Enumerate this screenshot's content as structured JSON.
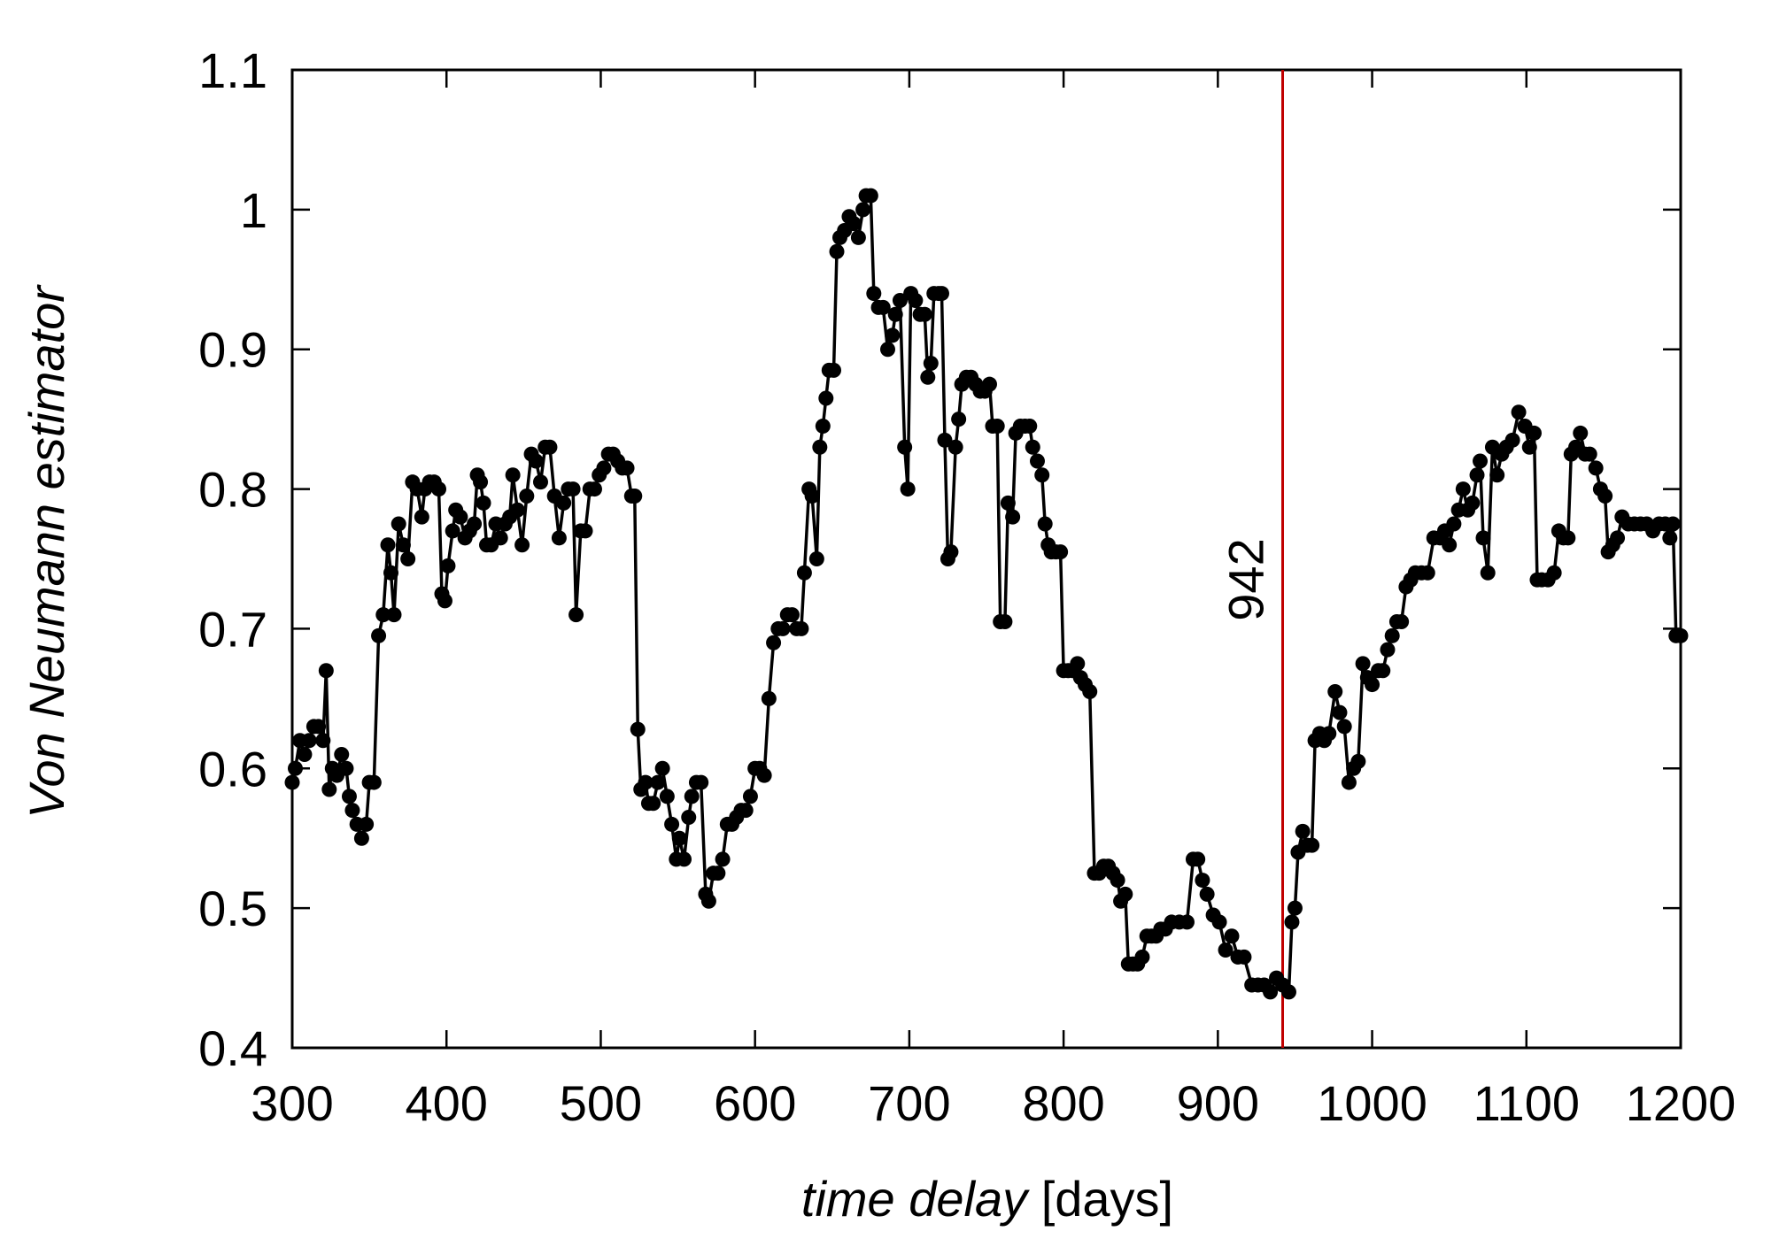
{
  "chart_data": {
    "type": "line",
    "ylabel": "Von Neumann estimator",
    "xlabel": [
      {
        "text": "time delay",
        "italic": true
      },
      {
        "text": "[days]",
        "italic": false
      }
    ],
    "xlim": [
      300,
      1200
    ],
    "xticks": [
      300,
      400,
      500,
      600,
      700,
      800,
      900,
      1000,
      1100,
      1200
    ],
    "ylim": [
      0.4,
      1.1
    ],
    "yticks": [
      0.4,
      0.5,
      0.6,
      0.7,
      0.8,
      0.9,
      1,
      1.1
    ],
    "vline": {
      "x": 942,
      "color": "#c00000"
    },
    "series": [
      {
        "color": "#000000",
        "x": [
          300,
          302,
          305,
          308,
          311,
          314,
          317,
          320,
          322,
          324,
          326,
          329,
          332,
          335,
          337,
          339,
          342,
          345,
          348,
          350,
          353,
          356,
          359,
          362,
          364,
          366,
          369,
          372,
          375,
          378,
          381,
          384,
          386,
          389,
          392,
          395,
          397,
          399,
          401,
          404,
          406,
          409,
          412,
          415,
          418,
          420,
          422,
          424,
          426,
          429,
          432,
          435,
          438,
          441,
          443,
          446,
          449,
          452,
          455,
          458,
          461,
          464,
          467,
          470,
          473,
          476,
          479,
          482,
          484,
          487,
          490,
          493,
          496,
          499,
          502,
          505,
          508,
          511,
          514,
          517,
          520,
          522,
          524,
          526,
          529,
          531,
          534,
          537,
          540,
          543,
          546,
          549,
          551,
          554,
          557,
          559,
          562,
          565,
          568,
          570,
          573,
          576,
          579,
          582,
          585,
          588,
          591,
          594,
          597,
          600,
          603,
          606,
          609,
          612,
          615,
          618,
          621,
          624,
          627,
          630,
          632,
          635,
          637,
          640,
          642,
          644,
          646,
          648,
          651,
          653,
          655,
          658,
          661,
          664,
          667,
          670,
          672,
          675,
          677,
          680,
          683,
          686,
          689,
          691,
          694,
          697,
          699,
          701,
          704,
          707,
          710,
          712,
          714,
          716,
          719,
          721,
          723,
          725,
          727,
          730,
          732,
          734,
          737,
          740,
          743,
          746,
          749,
          752,
          754,
          757,
          759,
          762,
          764,
          767,
          769,
          772,
          775,
          778,
          780,
          783,
          786,
          788,
          790,
          792,
          795,
          798,
          800,
          803,
          806,
          809,
          811,
          814,
          817,
          820,
          823,
          826,
          829,
          832,
          835,
          837,
          840,
          842,
          845,
          848,
          851,
          854,
          857,
          860,
          863,
          866,
          870,
          875,
          880,
          884,
          887,
          890,
          893,
          897,
          901,
          905,
          909,
          913,
          917,
          922,
          926,
          930,
          934,
          938,
          942,
          946,
          948,
          950,
          952,
          955,
          958,
          961,
          963,
          966,
          969,
          972,
          976,
          979,
          982,
          985,
          988,
          991,
          994,
          997,
          1000,
          1004,
          1007,
          1010,
          1013,
          1016,
          1019,
          1022,
          1025,
          1028,
          1032,
          1036,
          1040,
          1044,
          1047,
          1050,
          1053,
          1056,
          1059,
          1062,
          1065,
          1068,
          1070,
          1072,
          1075,
          1078,
          1081,
          1084,
          1087,
          1091,
          1095,
          1099,
          1102,
          1105,
          1107,
          1110,
          1114,
          1118,
          1121,
          1124,
          1127,
          1129,
          1132,
          1135,
          1138,
          1141,
          1145,
          1148,
          1151,
          1153,
          1156,
          1159,
          1162,
          1166,
          1170,
          1174,
          1178,
          1182,
          1186,
          1190,
          1193,
          1195,
          1197,
          1200
        ],
        "values": [
          0.59,
          0.6,
          0.62,
          0.61,
          0.62,
          0.63,
          0.63,
          0.62,
          0.67,
          0.585,
          0.6,
          0.595,
          0.61,
          0.6,
          0.58,
          0.57,
          0.56,
          0.55,
          0.56,
          0.59,
          0.59,
          0.695,
          0.71,
          0.76,
          0.74,
          0.71,
          0.775,
          0.76,
          0.75,
          0.805,
          0.8,
          0.78,
          0.8,
          0.805,
          0.805,
          0.8,
          0.725,
          0.72,
          0.745,
          0.77,
          0.785,
          0.78,
          0.765,
          0.77,
          0.775,
          0.81,
          0.805,
          0.79,
          0.76,
          0.76,
          0.775,
          0.765,
          0.775,
          0.78,
          0.81,
          0.785,
          0.76,
          0.795,
          0.825,
          0.82,
          0.805,
          0.83,
          0.83,
          0.795,
          0.765,
          0.79,
          0.8,
          0.8,
          0.71,
          0.77,
          0.77,
          0.8,
          0.8,
          0.81,
          0.815,
          0.825,
          0.825,
          0.82,
          0.815,
          0.815,
          0.795,
          0.795,
          0.628,
          0.585,
          0.59,
          0.575,
          0.575,
          0.59,
          0.6,
          0.58,
          0.56,
          0.535,
          0.55,
          0.535,
          0.565,
          0.58,
          0.59,
          0.59,
          0.51,
          0.505,
          0.525,
          0.525,
          0.535,
          0.56,
          0.56,
          0.565,
          0.57,
          0.57,
          0.58,
          0.6,
          0.6,
          0.595,
          0.65,
          0.69,
          0.7,
          0.7,
          0.71,
          0.71,
          0.7,
          0.7,
          0.74,
          0.8,
          0.795,
          0.75,
          0.83,
          0.845,
          0.865,
          0.885,
          0.885,
          0.97,
          0.98,
          0.985,
          0.995,
          0.99,
          0.98,
          1.0,
          1.01,
          1.01,
          0.94,
          0.93,
          0.93,
          0.9,
          0.91,
          0.925,
          0.935,
          0.83,
          0.8,
          0.94,
          0.935,
          0.925,
          0.925,
          0.88,
          0.89,
          0.94,
          0.94,
          0.94,
          0.835,
          0.75,
          0.755,
          0.83,
          0.85,
          0.875,
          0.88,
          0.88,
          0.875,
          0.87,
          0.87,
          0.875,
          0.845,
          0.845,
          0.705,
          0.705,
          0.79,
          0.78,
          0.84,
          0.845,
          0.845,
          0.845,
          0.83,
          0.82,
          0.81,
          0.775,
          0.76,
          0.755,
          0.755,
          0.755,
          0.67,
          0.67,
          0.67,
          0.675,
          0.665,
          0.66,
          0.655,
          0.525,
          0.525,
          0.53,
          0.53,
          0.525,
          0.52,
          0.505,
          0.51,
          0.46,
          0.46,
          0.46,
          0.465,
          0.48,
          0.48,
          0.48,
          0.485,
          0.485,
          0.49,
          0.49,
          0.49,
          0.535,
          0.535,
          0.52,
          0.51,
          0.495,
          0.49,
          0.47,
          0.48,
          0.465,
          0.465,
          0.445,
          0.445,
          0.445,
          0.44,
          0.45,
          0.445,
          0.44,
          0.49,
          0.5,
          0.54,
          0.555,
          0.545,
          0.545,
          0.62,
          0.625,
          0.62,
          0.625,
          0.655,
          0.64,
          0.63,
          0.59,
          0.6,
          0.605,
          0.675,
          0.665,
          0.66,
          0.67,
          0.67,
          0.685,
          0.695,
          0.705,
          0.705,
          0.73,
          0.735,
          0.74,
          0.74,
          0.74,
          0.765,
          0.765,
          0.77,
          0.76,
          0.775,
          0.785,
          0.8,
          0.785,
          0.79,
          0.81,
          0.82,
          0.765,
          0.74,
          0.83,
          0.81,
          0.825,
          0.83,
          0.835,
          0.855,
          0.845,
          0.83,
          0.84,
          0.735,
          0.735,
          0.735,
          0.74,
          0.77,
          0.765,
          0.765,
          0.825,
          0.83,
          0.84,
          0.825,
          0.825,
          0.815,
          0.8,
          0.795,
          0.755,
          0.76,
          0.765,
          0.78,
          0.775,
          0.775,
          0.775,
          0.775,
          0.77,
          0.775,
          0.775,
          0.765,
          0.775,
          0.695,
          0.695
        ]
      }
    ]
  }
}
